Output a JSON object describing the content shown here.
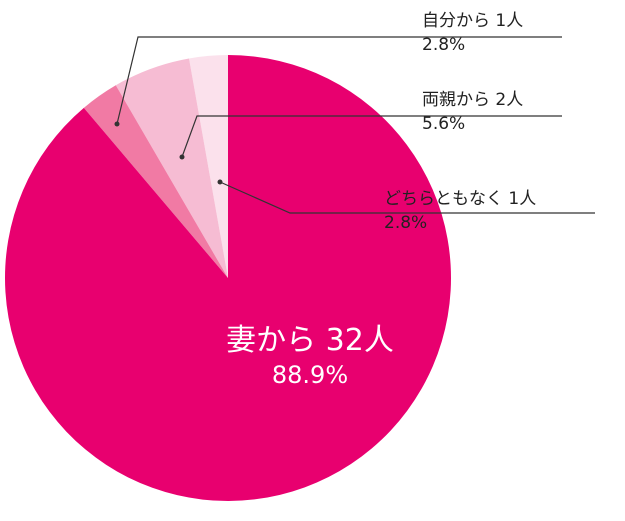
{
  "chart_data": {
    "type": "pie",
    "slices": [
      {
        "label": "どちらともなく 1人",
        "percent_label": "2.8%",
        "value": 2.8,
        "count": 1,
        "color": "#fbe1ec"
      },
      {
        "label": "両親から 2人",
        "percent_label": "5.6%",
        "value": 5.6,
        "count": 2,
        "color": "#f6bcd3"
      },
      {
        "label": "自分から 1人",
        "percent_label": "2.8%",
        "value": 2.8,
        "count": 1,
        "color": "#f17aa4"
      },
      {
        "label": "妻から 32人",
        "percent_label": "88.9%",
        "value": 88.9,
        "count": 32,
        "color": "#e8006f"
      }
    ],
    "start": "12 o'clock",
    "direction": "counter-clockwise",
    "legend": "none (callout labels)"
  },
  "labels": {
    "self": {
      "name": "自分から 1人",
      "pct": "2.8%"
    },
    "parents": {
      "name": "両親から 2人",
      "pct": "5.6%"
    },
    "neither": {
      "name": "どちらともなく 1人",
      "pct": "2.8%"
    },
    "wife": {
      "name": "妻から 32人",
      "pct": "88.9%"
    }
  }
}
